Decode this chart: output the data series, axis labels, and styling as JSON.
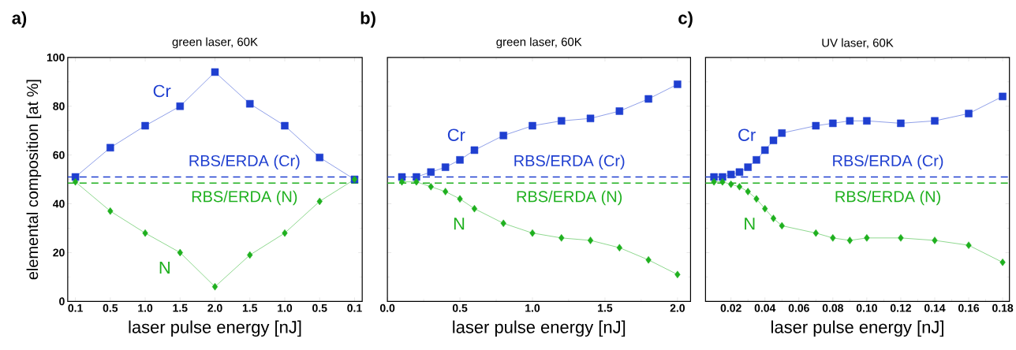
{
  "chart_data": [
    {
      "type": "line",
      "title": "green laser, 60K",
      "xlabel": "laser pulse energy [nJ]",
      "ylabel": "elemental composition [at %]",
      "annotations": [
        "a)"
      ],
      "categories": [
        "0.1",
        "0.5",
        "1.0",
        "1.5",
        "2.0",
        "1.5",
        "1.0",
        "0.5",
        "0.1"
      ],
      "series": [
        {
          "name": "Cr",
          "color": "#1f3fd0",
          "marker": "square",
          "values": [
            51,
            63,
            72,
            80,
            94,
            81,
            72,
            59,
            50
          ]
        },
        {
          "name": "N",
          "color": "#1fb01f",
          "marker": "diamond",
          "values": [
            49,
            37,
            28,
            20,
            6,
            19,
            28,
            41,
            50
          ]
        }
      ],
      "ylim": [
        0,
        100
      ],
      "yticks": [
        0,
        20,
        40,
        60,
        80,
        100
      ],
      "ref_lines": [
        {
          "axis": "y",
          "value": 51,
          "label": "RBS/ERDA (Cr)",
          "color": "#1f3fd0",
          "line_style": "dashed"
        },
        {
          "axis": "y",
          "value": 48.5,
          "label": "RBS/ERDA (N)",
          "color": "#1fb01f",
          "line_style": "dashed"
        }
      ]
    },
    {
      "type": "line",
      "title": "green laser, 60K",
      "xlabel": "laser pulse energy [nJ]",
      "annotations": [
        "b)"
      ],
      "x": [
        0.1,
        0.2,
        0.3,
        0.4,
        0.5,
        0.6,
        0.8,
        1.0,
        1.2,
        1.4,
        1.6,
        1.8,
        2.0
      ],
      "series": [
        {
          "name": "Cr",
          "color": "#1f3fd0",
          "marker": "square",
          "values": [
            51,
            51,
            53,
            55,
            58,
            62,
            68,
            72,
            74,
            75,
            78,
            83,
            89
          ]
        },
        {
          "name": "N",
          "color": "#1fb01f",
          "marker": "diamond",
          "values": [
            49,
            49,
            47,
            45,
            42,
            38,
            32,
            28,
            26,
            25,
            22,
            17,
            11
          ]
        }
      ],
      "xlim": [
        0,
        2.09
      ],
      "xticks": [
        {
          "value": 0,
          "label": "0.0"
        },
        0.5,
        {
          "value": 1,
          "label": "1.0"
        },
        1.5,
        {
          "value": 2,
          "label": "2.0"
        }
      ],
      "ylim": [
        0,
        100
      ],
      "yticks": [
        0,
        20,
        40,
        60,
        80,
        100
      ],
      "tick_labels": "x",
      "ref_lines": [
        {
          "axis": "y",
          "value": 51,
          "label": "RBS/ERDA (Cr)",
          "color": "#1f3fd0",
          "line_style": "dashed"
        },
        {
          "axis": "y",
          "value": 48.5,
          "label": "RBS/ERDA (N)",
          "color": "#1fb01f",
          "line_style": "dashed"
        }
      ]
    },
    {
      "type": "line",
      "title": "UV laser, 60K",
      "xlabel": "laser pulse energy [nJ]",
      "annotations": [
        "c)"
      ],
      "x": [
        0.01,
        0.015,
        0.02,
        0.025,
        0.03,
        0.035,
        0.04,
        0.045,
        0.05,
        0.07,
        0.08,
        0.09,
        0.1,
        0.12,
        0.14,
        0.16,
        0.18
      ],
      "series": [
        {
          "name": "Cr",
          "color": "#1f3fd0",
          "marker": "square",
          "values": [
            51,
            51,
            52,
            53,
            55,
            58,
            62,
            66,
            69,
            72,
            73,
            74,
            74,
            73,
            74,
            77,
            84
          ]
        },
        {
          "name": "N",
          "color": "#1fb01f",
          "marker": "diamond",
          "values": [
            49,
            49,
            48,
            47,
            45,
            42,
            38,
            34,
            31,
            28,
            26,
            25,
            26,
            26,
            25,
            23,
            16
          ]
        }
      ],
      "xlim": [
        0.005,
        0.184
      ],
      "xticks": [
        0.02,
        0.04,
        0.06,
        0.08,
        {
          "value": 0.1,
          "label": "0.10"
        },
        0.12,
        0.14,
        0.16,
        0.18
      ],
      "ylim": [
        0,
        100
      ],
      "yticks": [
        0,
        20,
        40,
        60,
        80,
        100
      ],
      "tick_labels": "x",
      "ref_lines": [
        {
          "axis": "y",
          "value": 51,
          "label": "RBS/ERDA (Cr)",
          "color": "#1f3fd0",
          "line_style": "dashed"
        },
        {
          "axis": "y",
          "value": 48.5,
          "label": "RBS/ERDA (N)",
          "color": "#1fb01f",
          "line_style": "dashed"
        }
      ]
    }
  ]
}
